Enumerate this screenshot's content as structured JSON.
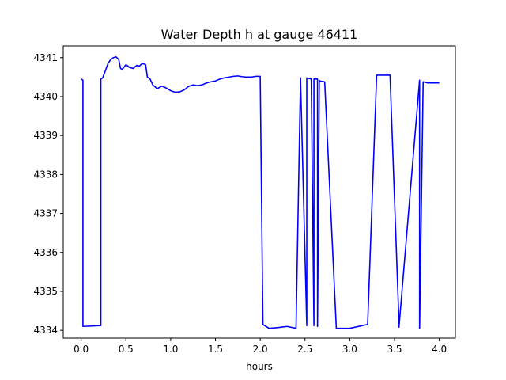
{
  "chart_data": {
    "type": "line",
    "title": "Water Depth h at gauge 46411",
    "xlabel": "hours",
    "ylabel": "",
    "xlim": [
      -0.2,
      4.18
    ],
    "ylim": [
      4333.8,
      4341.3
    ],
    "xticks": [
      0.0,
      0.5,
      1.0,
      1.5,
      2.0,
      2.5,
      3.0,
      3.5,
      4.0
    ],
    "xtick_labels": [
      "0.0",
      "0.5",
      "1.0",
      "1.5",
      "2.0",
      "2.5",
      "3.0",
      "3.5",
      "4.0"
    ],
    "yticks": [
      4334,
      4335,
      4336,
      4337,
      4338,
      4339,
      4340,
      4341
    ],
    "ytick_labels": [
      "4334",
      "4335",
      "4336",
      "4337",
      "4338",
      "4339",
      "4340",
      "4341"
    ],
    "grid": false,
    "series": [
      {
        "color": "#0000ff",
        "x": [
          0.0,
          0.02,
          0.02,
          0.22,
          0.22,
          0.24,
          0.26,
          0.3,
          0.33,
          0.36,
          0.39,
          0.42,
          0.44,
          0.46,
          0.5,
          0.54,
          0.58,
          0.62,
          0.65,
          0.68,
          0.72,
          0.74,
          0.77,
          0.8,
          0.85,
          0.9,
          0.95,
          1.0,
          1.05,
          1.1,
          1.15,
          1.2,
          1.25,
          1.3,
          1.35,
          1.4,
          1.45,
          1.5,
          1.55,
          1.6,
          1.65,
          1.7,
          1.75,
          1.8,
          1.85,
          1.9,
          1.95,
          2.0,
          2.03,
          2.03,
          2.1,
          2.2,
          2.3,
          2.4,
          2.45,
          2.45,
          2.52,
          2.52,
          2.57,
          2.6,
          2.6,
          2.64,
          2.64,
          2.66,
          2.66,
          2.72,
          2.85,
          2.85,
          3.0,
          3.2,
          3.3,
          3.3,
          3.45,
          3.55,
          3.55,
          3.78,
          3.78,
          3.82,
          3.82,
          3.87,
          3.95,
          4.0
        ],
        "y": [
          4340.45,
          4340.42,
          4334.1,
          4334.12,
          4340.45,
          4340.48,
          4340.6,
          4340.85,
          4340.95,
          4341.0,
          4341.02,
          4340.95,
          4340.72,
          4340.7,
          4340.82,
          4340.75,
          4340.72,
          4340.8,
          4340.78,
          4340.85,
          4340.82,
          4340.5,
          4340.45,
          4340.3,
          4340.2,
          4340.27,
          4340.22,
          4340.15,
          4340.11,
          4340.12,
          4340.17,
          4340.26,
          4340.3,
          4340.28,
          4340.3,
          4340.35,
          4340.38,
          4340.4,
          4340.45,
          4340.48,
          4340.5,
          4340.52,
          4340.53,
          4340.51,
          4340.5,
          4340.5,
          4340.52,
          4340.52,
          4334.18,
          4334.15,
          4334.05,
          4334.07,
          4334.1,
          4334.05,
          4340.45,
          4340.48,
          4334.12,
          4340.48,
          4340.45,
          4334.12,
          4340.45,
          4340.45,
          4334.1,
          4340.42,
          4340.4,
          4340.38,
          4334.05,
          4334.05,
          4334.05,
          4334.15,
          4340.52,
          4340.55,
          4340.55,
          4334.2,
          4334.08,
          4340.42,
          4334.05,
          4340.38,
          4340.38,
          4340.35,
          4340.35,
          4340.35
        ]
      }
    ]
  }
}
